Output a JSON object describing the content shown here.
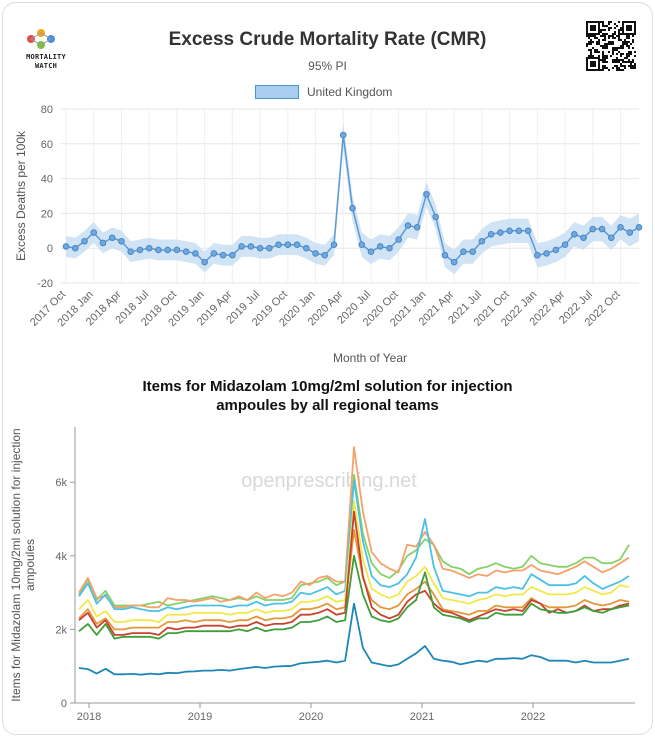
{
  "logo": {
    "line1": "MORTALITY",
    "line2": "WATCH"
  },
  "chart_data": [
    {
      "type": "line",
      "title": "Excess Crude Mortality Rate (CMR)",
      "subtitle": "95% PI",
      "xlabel": "Month of Year",
      "ylabel": "Excess Deaths per 100k",
      "ylim": [
        -20,
        80
      ],
      "yticks": [
        "80",
        "60",
        "40",
        "20",
        "0",
        "-20"
      ],
      "xtick_labels": [
        "2017 Oct",
        "2018 Jan",
        "2018 Apr",
        "2018 Jul",
        "2018 Oct",
        "2019 Jan",
        "2019 Apr",
        "2019 Jul",
        "2019 Oct",
        "2020 Jan",
        "2020 Apr",
        "2020 Jul",
        "2020 Oct",
        "2021 Jan",
        "2021 Apr",
        "2021 Jul",
        "2021 Oct",
        "2022 Jan",
        "2022 Apr",
        "2022 Jul",
        "2022 Oct"
      ],
      "legend": "top-center",
      "grid": true,
      "series": [
        {
          "name": "United Kingdom",
          "color": "#5b9bd5",
          "band_color": "#c5ddf3",
          "values": [
            1,
            0,
            4,
            9,
            3,
            6,
            4,
            -2,
            -1,
            0,
            -1,
            -1,
            -1,
            -2,
            -3,
            -8,
            -3,
            -4,
            -4,
            1,
            1,
            0,
            0,
            2,
            2,
            2,
            0,
            -3,
            -4,
            2,
            65,
            23,
            2,
            -2,
            1,
            0,
            5,
            13,
            12,
            31,
            18,
            -4,
            -8,
            -2,
            -2,
            4,
            8,
            9,
            10,
            10,
            10,
            -4,
            -3,
            -1,
            2,
            8,
            6,
            11,
            11,
            6,
            12,
            9,
            12
          ],
          "band_halfwidth": [
            6,
            6,
            6,
            6,
            6,
            6,
            6,
            6,
            6,
            6,
            6,
            6,
            6,
            6,
            6,
            6,
            6,
            6,
            6,
            6,
            6,
            6,
            6,
            6,
            6,
            6,
            6,
            6,
            6,
            6,
            7,
            7,
            7,
            7,
            7,
            7,
            7,
            7,
            7,
            7,
            7,
            7,
            7,
            7,
            7,
            7,
            7,
            7,
            7,
            7,
            7,
            7,
            7,
            7,
            7,
            7,
            7,
            7,
            7,
            7,
            7,
            8,
            8
          ]
        }
      ]
    },
    {
      "type": "line",
      "title": "Items for Midazolam 10mg/2ml solution for injection ampoules by all regional teams",
      "ylabel": "Items for Midazolam 10mg/2ml solution for injection ampoules",
      "watermark": "openprescribing.net",
      "ylim": [
        0,
        7500
      ],
      "yticks": [
        "0",
        "2k",
        "4k",
        "6k"
      ],
      "xtick_labels": [
        "2018",
        "2019",
        "2020",
        "2021",
        "2022"
      ],
      "series": [
        {
          "color": "#86d16a",
          "values": [
            2950,
            3350,
            2800,
            3050,
            2650,
            2650,
            2650,
            2650,
            2700,
            2750,
            2650,
            2700,
            2750,
            2800,
            2850,
            2900,
            2850,
            2800,
            2850,
            2800,
            2900,
            2800,
            2800,
            2800,
            2850,
            3200,
            3250,
            3300,
            3400,
            3200,
            3300,
            6200,
            4600,
            3800,
            3500,
            3400,
            3600,
            4000,
            4150,
            4450,
            4300,
            3850,
            3700,
            3650,
            3500,
            3650,
            3700,
            3800,
            3700,
            3650,
            3700,
            4000,
            3800,
            3750,
            3700,
            3700,
            3800,
            3950,
            3950,
            3800,
            3800,
            3900,
            4300
          ]
        },
        {
          "color": "#f5a16b",
          "values": [
            3000,
            3400,
            2850,
            2900,
            2600,
            2600,
            2650,
            2650,
            2600,
            2600,
            2850,
            2800,
            2800,
            2750,
            2800,
            2850,
            2750,
            2800,
            2900,
            2800,
            3000,
            2850,
            2950,
            2900,
            3000,
            3300,
            3200,
            3400,
            3450,
            3300,
            3300,
            6950,
            5200,
            4100,
            3800,
            3650,
            3550,
            4300,
            4250,
            4650,
            4300,
            3650,
            3600,
            3500,
            3400,
            3500,
            3450,
            3600,
            3550,
            3600,
            3600,
            3750,
            3600,
            3550,
            3500,
            3600,
            3700,
            3850,
            3700,
            3550,
            3650,
            3800,
            3950
          ]
        },
        {
          "color": "#4cc1e3",
          "values": [
            2900,
            3250,
            2700,
            2950,
            2550,
            2550,
            2600,
            2550,
            2500,
            2500,
            2600,
            2550,
            2600,
            2650,
            2650,
            2650,
            2650,
            2600,
            2650,
            2650,
            2750,
            2650,
            2700,
            2700,
            2750,
            3000,
            2950,
            3050,
            3150,
            2950,
            3050,
            6050,
            4400,
            3450,
            3200,
            3150,
            3250,
            3500,
            3950,
            5000,
            3700,
            3050,
            3000,
            2950,
            2900,
            3000,
            3000,
            3150,
            3100,
            3150,
            3100,
            3500,
            3350,
            3200,
            3200,
            3200,
            3250,
            3450,
            3250,
            3100,
            3200,
            3300,
            3450
          ]
        },
        {
          "color": "#f1e84a",
          "values": [
            2550,
            2800,
            2350,
            2500,
            2200,
            2200,
            2250,
            2250,
            2250,
            2200,
            2400,
            2400,
            2400,
            2450,
            2450,
            2450,
            2450,
            2400,
            2450,
            2450,
            2550,
            2450,
            2500,
            2500,
            2550,
            2750,
            2750,
            2800,
            2900,
            2750,
            2800,
            5500,
            3900,
            3100,
            2950,
            2850,
            2950,
            3300,
            3450,
            3700,
            3250,
            2850,
            2800,
            2750,
            2700,
            2800,
            2850,
            2950,
            2900,
            2950,
            2950,
            3150,
            3050,
            2950,
            2950,
            2950,
            3000,
            3150,
            3050,
            2950,
            3000,
            3200,
            3150
          ]
        },
        {
          "color": "#e4973a",
          "values": [
            2300,
            2550,
            2150,
            2300,
            2000,
            2000,
            2050,
            2050,
            2050,
            2050,
            2200,
            2200,
            2250,
            2200,
            2250,
            2250,
            2250,
            2200,
            2250,
            2250,
            2350,
            2250,
            2300,
            2300,
            2350,
            2550,
            2550,
            2600,
            2700,
            2550,
            2600,
            4700,
            3400,
            2800,
            2600,
            2550,
            2650,
            2950,
            3100,
            3300,
            2950,
            2550,
            2500,
            2450,
            2400,
            2500,
            2500,
            2650,
            2600,
            2600,
            2600,
            2850,
            2700,
            2600,
            2600,
            2600,
            2650,
            2800,
            2700,
            2650,
            2700,
            2800,
            2750
          ]
        },
        {
          "color": "#c9422f",
          "values": [
            2250,
            2450,
            2050,
            2250,
            1850,
            1850,
            1900,
            1900,
            1900,
            1850,
            2050,
            2000,
            2050,
            2050,
            2100,
            2100,
            2100,
            2050,
            2100,
            2100,
            2200,
            2100,
            2150,
            2150,
            2200,
            2400,
            2400,
            2450,
            2550,
            2400,
            2450,
            5200,
            3450,
            2600,
            2400,
            2300,
            2400,
            2750,
            2950,
            3050,
            2700,
            2500,
            2450,
            2350,
            2250,
            2350,
            2450,
            2550,
            2500,
            2550,
            2500,
            2800,
            2700,
            2450,
            2550,
            2450,
            2500,
            2650,
            2500,
            2550,
            2550,
            2650,
            2700
          ]
        },
        {
          "color": "#3e9e38",
          "values": [
            1950,
            2150,
            1850,
            2150,
            1750,
            1800,
            1800,
            1800,
            1800,
            1750,
            1900,
            1900,
            1950,
            1950,
            1950,
            1950,
            1950,
            1950,
            2000,
            1950,
            2050,
            1950,
            2000,
            2000,
            2050,
            2200,
            2200,
            2250,
            2350,
            2200,
            2250,
            4000,
            2950,
            2350,
            2250,
            2200,
            2300,
            2600,
            2800,
            3550,
            2600,
            2400,
            2350,
            2300,
            2200,
            2300,
            2300,
            2450,
            2400,
            2400,
            2400,
            2700,
            2550,
            2500,
            2450,
            2450,
            2500,
            2600,
            2500,
            2450,
            2550,
            2600,
            2650
          ]
        },
        {
          "color": "#1f87b5",
          "values": [
            950,
            920,
            800,
            930,
            780,
            780,
            790,
            770,
            800,
            780,
            820,
            810,
            850,
            860,
            880,
            880,
            900,
            880,
            920,
            950,
            980,
            950,
            990,
            1000,
            1010,
            1080,
            1100,
            1120,
            1150,
            1100,
            1150,
            2700,
            1500,
            1100,
            1050,
            1000,
            1050,
            1200,
            1350,
            1550,
            1200,
            1150,
            1120,
            1050,
            1100,
            1150,
            1120,
            1200,
            1200,
            1220,
            1200,
            1300,
            1250,
            1150,
            1150,
            1150,
            1100,
            1150,
            1100,
            1100,
            1100,
            1150,
            1200
          ]
        }
      ]
    }
  ]
}
